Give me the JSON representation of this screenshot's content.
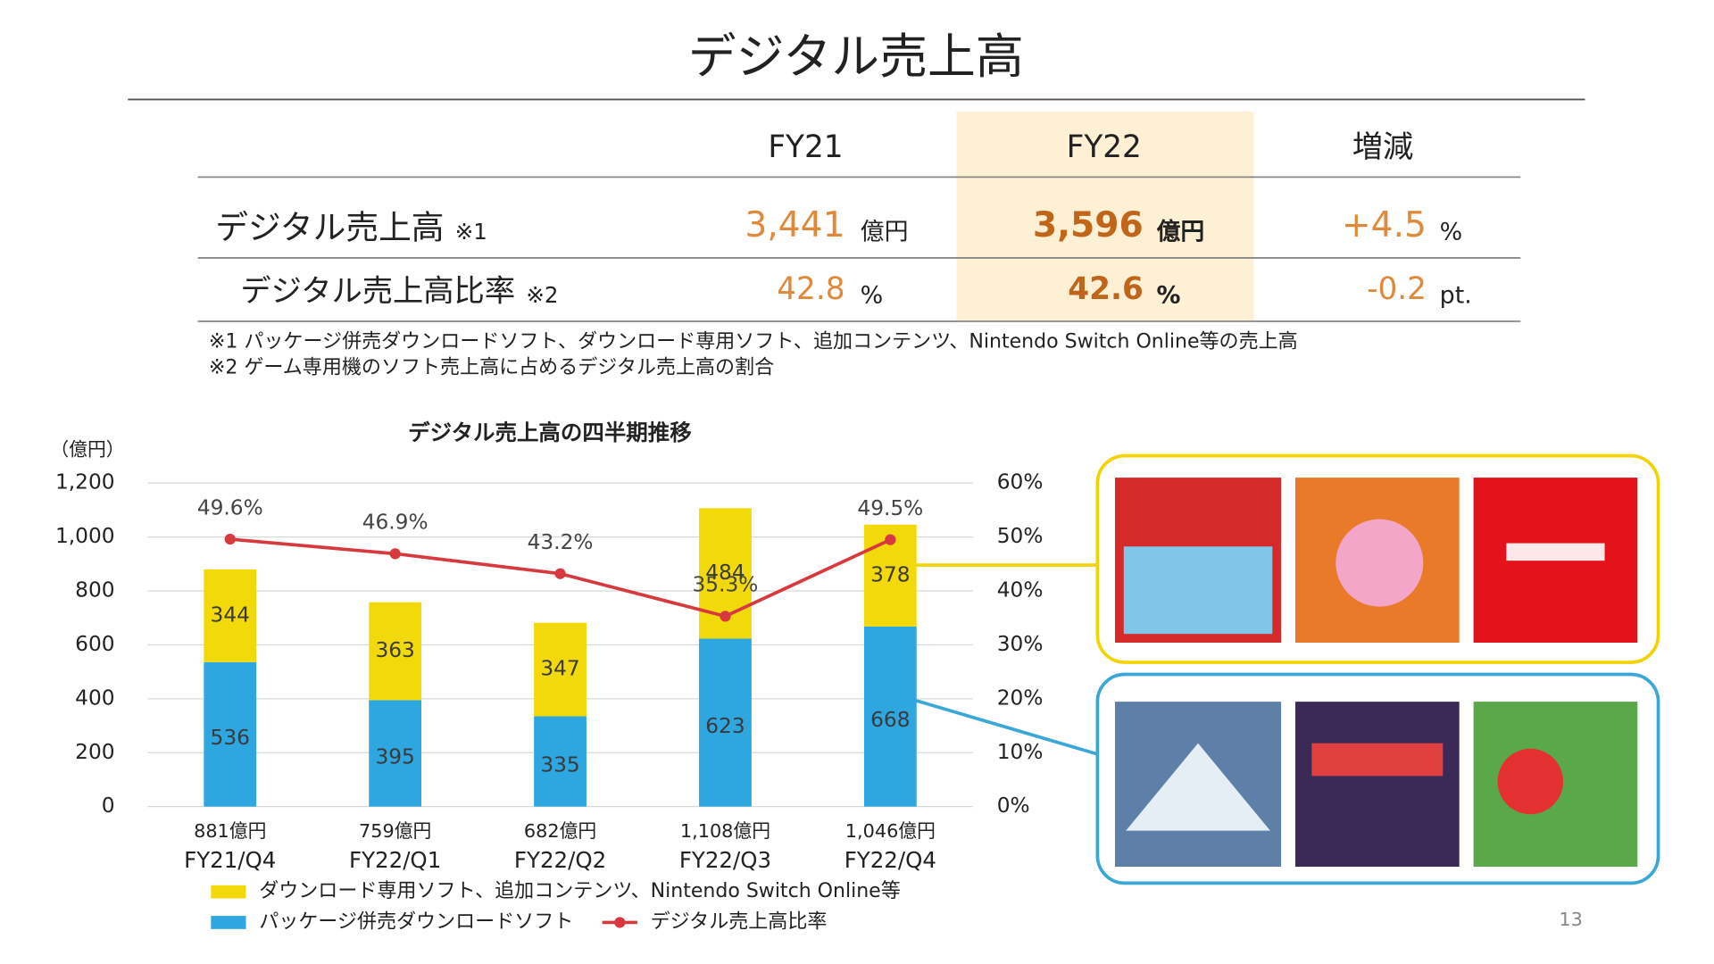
{
  "title": "デジタル売上高",
  "table": {
    "header": [
      "FY21",
      "FY22",
      "増減"
    ],
    "rows": [
      {
        "label": "デジタル売上高",
        "note": "※1",
        "cells": [
          [
            "3,441",
            "億円"
          ],
          [
            "3,596",
            "億円"
          ],
          [
            "+4.5",
            "%"
          ]
        ]
      },
      {
        "label": "デジタル売上高比率",
        "note": "※2",
        "cells": [
          [
            "42.8",
            "%"
          ],
          [
            "42.6",
            "%"
          ],
          [
            "-0.2",
            "pt."
          ]
        ]
      }
    ]
  },
  "notes": [
    "※1 パッケージ併売ダウンロードソフト、ダウンロード専用ソフト、追加コンテンツ、Nintendo Switch Online等の売上高",
    "※2 ゲーム専用機のソフト売上高に占めるデジタル売上高の割合"
  ],
  "chart_data": {
    "type": "bar",
    "stacked": true,
    "title": "デジタル売上高の四半期推移",
    "y_label": "（億円）",
    "categories": [
      "FY21/Q4",
      "FY22/Q1",
      "FY22/Q2",
      "FY22/Q3",
      "FY22/Q4"
    ],
    "total_labels": [
      "881億円",
      "759億円",
      "682億円",
      "1,108億円",
      "1,046億円"
    ],
    "series": [
      {
        "name": "パッケージ併売ダウンロードソフト",
        "color": "#2ea6e0",
        "values": [
          536,
          395,
          335,
          623,
          668
        ]
      },
      {
        "name": "ダウンロード専用ソフト、追加コンテンツ、Nintendo Switch Online等",
        "color": "#f2da0a",
        "values": [
          344,
          363,
          347,
          484,
          378
        ]
      },
      {
        "name": "デジタル売上高比率",
        "color": "#d7393f",
        "type": "line",
        "axis": "y2",
        "values": [
          49.6,
          46.9,
          43.2,
          35.3,
          49.5
        ],
        "value_labels": [
          "49.6%",
          "46.9%",
          "43.2%",
          "35.3%",
          "49.5%"
        ]
      }
    ],
    "ylim": [
      0,
      1200
    ],
    "yticks": [
      0,
      200,
      400,
      600,
      800,
      {
        "value": 1000,
        "label": "1,000"
      },
      {
        "value": 1200,
        "label": "1,200"
      }
    ],
    "y2lim": [
      0,
      60
    ],
    "y2ticks": [
      {
        "value": 0,
        "label": "0%"
      },
      {
        "value": 10,
        "label": "10%"
      },
      {
        "value": 20,
        "label": "20%"
      },
      {
        "value": 30,
        "label": "30%"
      },
      {
        "value": 40,
        "label": "40%"
      },
      {
        "value": 50,
        "label": "50%"
      },
      {
        "value": 60,
        "label": "60%"
      }
    ],
    "grid": true
  },
  "page_number": "13"
}
